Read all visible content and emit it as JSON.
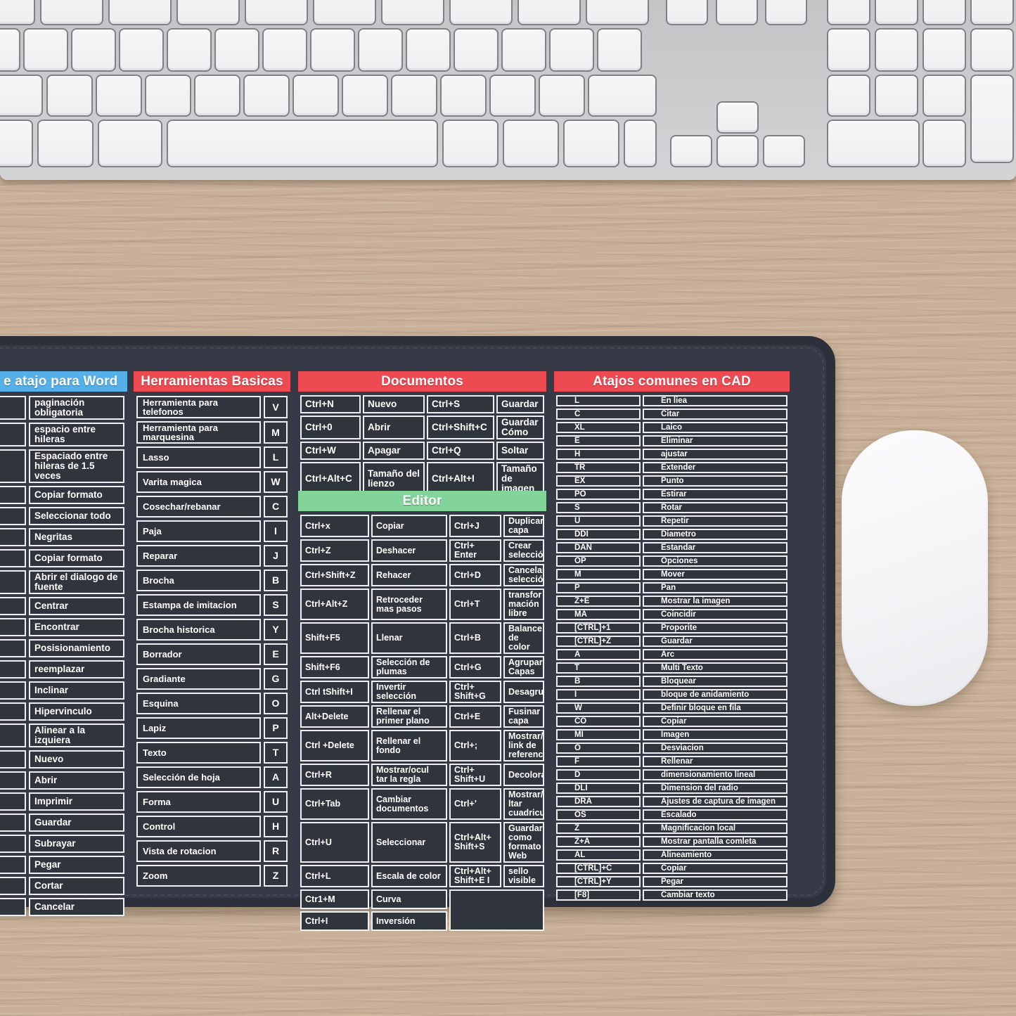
{
  "colors": {
    "header_blue": "#55b0ea",
    "header_red": "#ee4a52",
    "header_green": "#82d498",
    "pad_surface": "#353a46",
    "cell_background": "#30343d",
    "cell_border": "#eef0f2",
    "text": "#ffffff"
  },
  "word_section": {
    "title": "e atajo para Word",
    "rows": [
      "paginación obligatoria",
      "espacio entre hileras",
      "Espaciado entre hileras de 1.5 veces",
      "Copiar formato",
      "Seleccionar todo",
      "Negritas",
      "Copiar formato",
      "Abrir el dialogo de fuente",
      "Centrar",
      "Encontrar",
      "Posisionamiento",
      "reemplazar",
      "Inclinar",
      "Hipervinculo",
      "Alinear a la izquiera",
      "Nuevo",
      "Abrir",
      "Imprimir",
      "Guardar",
      "Subrayar",
      "Pegar",
      "Cortar",
      "Cancelar"
    ]
  },
  "tools_section": {
    "title": "Herramientas Basicas",
    "rows": [
      {
        "label": "Herramienta para telefonos",
        "key": "V"
      },
      {
        "label": "Herramienta para marquesina",
        "key": "M"
      },
      {
        "label": "Lasso",
        "key": "L"
      },
      {
        "label": "Varita magica",
        "key": "W"
      },
      {
        "label": "Cosechar/rebanar",
        "key": "C"
      },
      {
        "label": "Paja",
        "key": "I"
      },
      {
        "label": "Reparar",
        "key": "J"
      },
      {
        "label": "Brocha",
        "key": "B"
      },
      {
        "label": "Estampa de imitacion",
        "key": "S"
      },
      {
        "label": "Brocha historica",
        "key": "Y"
      },
      {
        "label": "Borrador",
        "key": "E"
      },
      {
        "label": "Gradiante",
        "key": "G"
      },
      {
        "label": "Esquina",
        "key": "O"
      },
      {
        "label": "Lapiz",
        "key": "P"
      },
      {
        "label": "Texto",
        "key": "T"
      },
      {
        "label": "Selección de hoja",
        "key": "A"
      },
      {
        "label": "Forma",
        "key": "U"
      },
      {
        "label": "Control",
        "key": "H"
      },
      {
        "label": "Vista de rotacion",
        "key": "R"
      },
      {
        "label": "Zoom",
        "key": "Z"
      }
    ]
  },
  "documents_section": {
    "title": "Documentos",
    "rows": [
      [
        "Ctrl+N",
        "Nuevo",
        "Ctrl+S",
        "Guardar"
      ],
      [
        "Ctrl+0",
        "Abrir",
        "Ctrl+Shift+C",
        "Guardar Cómo"
      ],
      [
        "Ctrl+W",
        "Apagar",
        "Ctrl+Q",
        "Soltar"
      ],
      [
        "Ctrl+Alt+C",
        "Tamaño del lienzo",
        "Ctrl+Alt+I",
        "Tamaño de imagen"
      ]
    ]
  },
  "editor_section": {
    "title": "Editor",
    "rows": [
      [
        "Ctrl+x",
        "Copiar",
        "Ctrl+J",
        "Duplicar capa"
      ],
      [
        "Ctrl+Z",
        "Deshacer",
        "Ctrl+ Enter",
        "Crear selección"
      ],
      [
        "Ctrl+Shift+Z",
        "Rehacer",
        "Ctrl+D",
        "Cancelar selección"
      ],
      [
        "Ctrl+Alt+Z",
        "Retroceder mas pasos",
        "Ctrl+T",
        "transfor mación libre"
      ],
      [
        "Shift+F5",
        "Llenar",
        "Ctrl+B",
        "Balance de color"
      ],
      [
        "Shift+F6",
        "Selección de plumas",
        "Ctrl+G",
        "Agrupar Capas"
      ],
      [
        "Ctrl tShift+I",
        "Invertir selección",
        "Ctrl+ Shift+G",
        "Desagrupar"
      ],
      [
        "Alt+Delete",
        "Rellenar el primer plano",
        "Ctrl+E",
        "Fusinar capa"
      ],
      [
        "Ctrl +Delete",
        "Rellenar el fondo",
        "Ctrl+;",
        "Mostrar/ocultar link de referencia"
      ],
      [
        "Ctrl+R",
        "Mostrar/ocul tar la regla",
        "Ctrl+ Shift+U",
        "Decolorar"
      ],
      [
        "Ctrl+Tab",
        "Cambiar documentos",
        "Ctrl+'",
        "Mostrar/ocu ltar cuadricula"
      ],
      [
        "Ctrl+U",
        "Seleccionar",
        "Ctrl+Alt+ Shift+S",
        "Guardar como formato Web"
      ],
      [
        "Ctrl+L",
        "Escala de color",
        "Ctrl+Alt+ Shift+E I",
        "sello visible"
      ],
      [
        "Ctr1+M",
        "Curva"
      ],
      [
        "Ctrl+I",
        "Inversión"
      ]
    ]
  },
  "cad_section": {
    "title": "Atajos comunes en CAD",
    "rows": [
      [
        "L",
        "En liea"
      ],
      [
        "C",
        "Citar"
      ],
      [
        "XL",
        "Laico"
      ],
      [
        "E",
        "Eliminar"
      ],
      [
        "H",
        "ajustar"
      ],
      [
        "TR",
        "Extender"
      ],
      [
        "EX",
        "Punto"
      ],
      [
        "PO",
        "Estirar"
      ],
      [
        "S",
        "Rotar"
      ],
      [
        "U",
        "Repetir"
      ],
      [
        "DDI",
        "Diametro"
      ],
      [
        "DAN",
        "Estandar"
      ],
      [
        "OP",
        "Opciones"
      ],
      [
        "M",
        "Mover"
      ],
      [
        "P",
        "Pan"
      ],
      [
        "Z+E",
        "Mostrar la imagen"
      ],
      [
        "MA",
        "Coincidir"
      ],
      [
        "[CTRL]+1",
        "Proporite"
      ],
      [
        "[CTRL]+Z",
        "Guardar"
      ],
      [
        "A",
        "Arc"
      ],
      [
        "T",
        "Multi Texto"
      ],
      [
        "B",
        "Bloquear"
      ],
      [
        "I",
        "bloque de anidamiento"
      ],
      [
        "W",
        "Definir bloque en fila"
      ],
      [
        "CO",
        "Copiar"
      ],
      [
        "MI",
        "Imagen"
      ],
      [
        "O",
        "Desviacion"
      ],
      [
        "F",
        "Rellenar"
      ],
      [
        "D",
        "dimensionamiento lineal"
      ],
      [
        "DLI",
        "Dimension del radio"
      ],
      [
        "DRA",
        "Ajustes de captura de imagen"
      ],
      [
        "OS",
        "Escalado"
      ],
      [
        "Z",
        "Magnificacion local"
      ],
      [
        "Z+A",
        "Mostrar pantalla comleta"
      ],
      [
        "AL",
        "Alineamiento"
      ],
      [
        "[CTRL]+C",
        "Copiar"
      ],
      [
        "[CTRL]+Y",
        "Pegar"
      ],
      [
        "[F8]",
        "Cambiar texto"
      ]
    ]
  }
}
